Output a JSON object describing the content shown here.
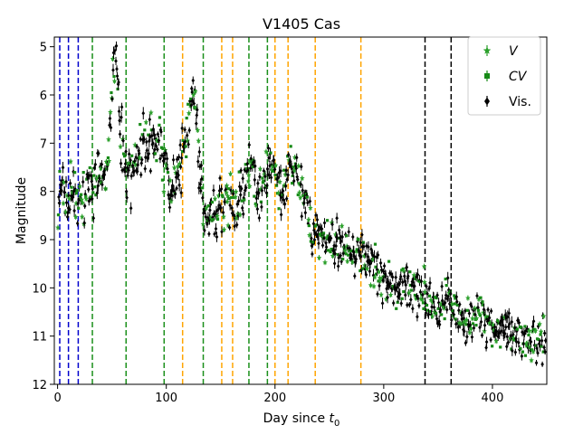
{
  "chart_data": {
    "type": "scatter",
    "title": "V1405 Cas",
    "xlabel_main": "Day since ",
    "xlabel_var": "t",
    "xlabel_sub": "0",
    "ylabel": "Magnitude",
    "xlim": [
      -3,
      450
    ],
    "ylim": [
      12,
      4.8
    ],
    "y_inverted": true,
    "grid": false,
    "legend_position": "top-right",
    "x_ticks": [
      0,
      100,
      200,
      300,
      400
    ],
    "y_ticks": [
      5,
      6,
      7,
      8,
      9,
      10,
      11,
      12
    ],
    "colors": {
      "V": "#2ca02c",
      "CV": "#178a17",
      "Vis": "#000000",
      "blue_lines": "#0000cc",
      "green_lines": "#1a8f1a",
      "orange_lines": "#ffa500",
      "black_lines": "#000000"
    },
    "series": [
      {
        "key": "V",
        "name": "V",
        "marker": "star",
        "color": "#2ca02c"
      },
      {
        "key": "CV",
        "name": "CV",
        "marker": "square",
        "color": "#178a17"
      },
      {
        "key": "Vis",
        "name": "Vis.",
        "marker": "diamond",
        "color": "#000000"
      }
    ],
    "light_curve_trend": [
      [
        0,
        8.6
      ],
      [
        2,
        7.7
      ],
      [
        5,
        8.0
      ],
      [
        10,
        8.2
      ],
      [
        15,
        8.0
      ],
      [
        20,
        8.2
      ],
      [
        25,
        8.1
      ],
      [
        30,
        8.0
      ],
      [
        35,
        7.8
      ],
      [
        40,
        7.6
      ],
      [
        45,
        7.5
      ],
      [
        48,
        6.8
      ],
      [
        50,
        5.8
      ],
      [
        52,
        5.2
      ],
      [
        54,
        5.3
      ],
      [
        56,
        6.0
      ],
      [
        58,
        7.0
      ],
      [
        62,
        7.5
      ],
      [
        66,
        7.6
      ],
      [
        70,
        7.4
      ],
      [
        75,
        7.1
      ],
      [
        80,
        7.0
      ],
      [
        85,
        7.0
      ],
      [
        90,
        7.0
      ],
      [
        95,
        7.1
      ],
      [
        100,
        7.5
      ],
      [
        103,
        8.0
      ],
      [
        106,
        7.8
      ],
      [
        110,
        7.6
      ],
      [
        113,
        7.6
      ],
      [
        116,
        7.2
      ],
      [
        120,
        6.6
      ],
      [
        124,
        6.0
      ],
      [
        126,
        5.9
      ],
      [
        128,
        6.5
      ],
      [
        130,
        7.5
      ],
      [
        133,
        8.0
      ],
      [
        136,
        8.3
      ],
      [
        140,
        8.5
      ],
      [
        144,
        8.5
      ],
      [
        148,
        8.4
      ],
      [
        152,
        8.3
      ],
      [
        156,
        8.1
      ],
      [
        160,
        8.2
      ],
      [
        165,
        8.3
      ],
      [
        170,
        8.0
      ],
      [
        174,
        7.5
      ],
      [
        178,
        7.3
      ],
      [
        182,
        7.8
      ],
      [
        186,
        8.1
      ],
      [
        190,
        7.7
      ],
      [
        195,
        7.2
      ],
      [
        200,
        7.7
      ],
      [
        205,
        8.0
      ],
      [
        210,
        7.8
      ],
      [
        215,
        7.5
      ],
      [
        220,
        7.6
      ],
      [
        225,
        8.0
      ],
      [
        230,
        8.5
      ],
      [
        235,
        8.9
      ],
      [
        240,
        8.9
      ],
      [
        250,
        9.0
      ],
      [
        260,
        9.1
      ],
      [
        270,
        9.2
      ],
      [
        280,
        9.4
      ],
      [
        290,
        9.6
      ],
      [
        300,
        9.8
      ],
      [
        310,
        10.0
      ],
      [
        320,
        10.0
      ],
      [
        330,
        10.1
      ],
      [
        338,
        10.1
      ],
      [
        345,
        10.4
      ],
      [
        350,
        10.5
      ],
      [
        355,
        10.3
      ],
      [
        360,
        10.2
      ],
      [
        365,
        10.4
      ],
      [
        370,
        10.6
      ],
      [
        375,
        10.8
      ],
      [
        380,
        10.7
      ],
      [
        385,
        10.6
      ],
      [
        390,
        10.5
      ],
      [
        395,
        10.7
      ],
      [
        400,
        10.8
      ],
      [
        410,
        10.9
      ],
      [
        420,
        11.0
      ],
      [
        430,
        11.0
      ],
      [
        440,
        11.1
      ],
      [
        450,
        11.1
      ]
    ],
    "vertical_lines": [
      {
        "x": 2,
        "color": "blue_lines"
      },
      {
        "x": 10,
        "color": "blue_lines"
      },
      {
        "x": 19,
        "color": "blue_lines"
      },
      {
        "x": 32,
        "color": "green_lines"
      },
      {
        "x": 63,
        "color": "green_lines"
      },
      {
        "x": 98,
        "color": "green_lines"
      },
      {
        "x": 134,
        "color": "green_lines"
      },
      {
        "x": 176,
        "color": "green_lines"
      },
      {
        "x": 193,
        "color": "green_lines"
      },
      {
        "x": 115,
        "color": "orange_lines"
      },
      {
        "x": 151,
        "color": "orange_lines"
      },
      {
        "x": 161,
        "color": "orange_lines"
      },
      {
        "x": 200,
        "color": "orange_lines"
      },
      {
        "x": 212,
        "color": "orange_lines"
      },
      {
        "x": 237,
        "color": "orange_lines"
      },
      {
        "x": 279,
        "color": "orange_lines"
      },
      {
        "x": 338,
        "color": "black_lines"
      },
      {
        "x": 362,
        "color": "black_lines"
      }
    ]
  }
}
